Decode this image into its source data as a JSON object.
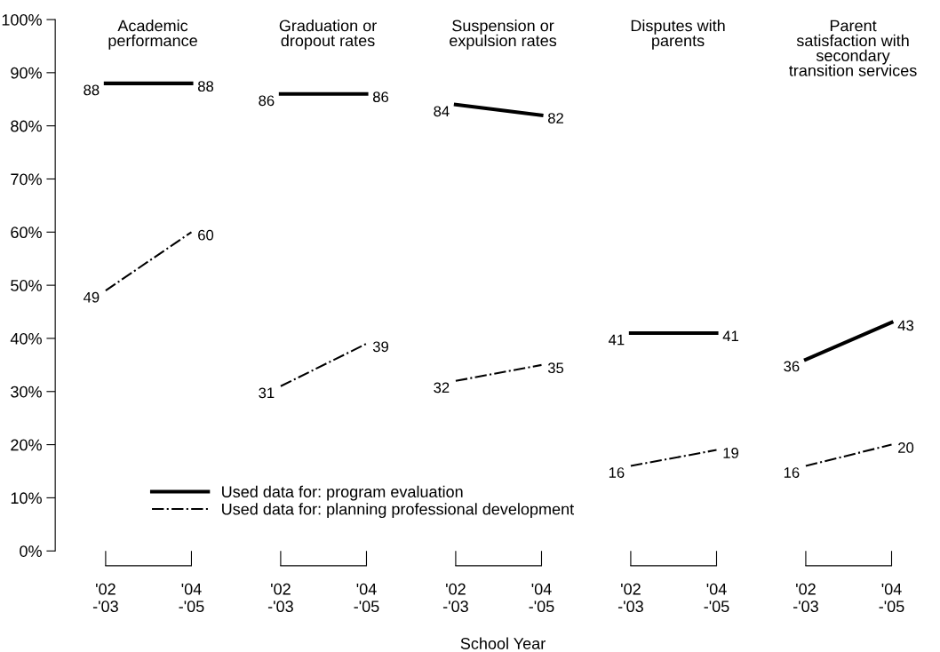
{
  "chart_data": [
    {
      "type": "line",
      "title": "Academic\nperformance",
      "categories": [
        "'02\n-'03",
        "'04\n-'05"
      ],
      "ylim": [
        0,
        100
      ],
      "yticks": [
        {
          "value": 0,
          "label": "0%"
        },
        {
          "value": 10,
          "label": "10%"
        },
        {
          "value": 20,
          "label": "20%"
        },
        {
          "value": 30,
          "label": "30%"
        },
        {
          "value": 40,
          "label": "40%"
        },
        {
          "value": 50,
          "label": "50%"
        },
        {
          "value": 60,
          "label": "60%"
        },
        {
          "value": 70,
          "label": "70%"
        },
        {
          "value": 80,
          "label": "80%"
        },
        {
          "value": 90,
          "label": "90%"
        },
        {
          "value": 100,
          "label": "100%"
        }
      ],
      "data_labels": true,
      "legend": "bottom",
      "grid": false,
      "marker": "none",
      "series": [
        {
          "name": "Used data for: program evaluation",
          "color": "#000000",
          "line_style": "solid",
          "values": [
            88,
            88
          ]
        },
        {
          "name": "Used data for: planning professional development",
          "color": "#000000",
          "line_style": "dashdot",
          "values": [
            49,
            60
          ]
        }
      ]
    },
    {
      "type": "line",
      "title": "Graduation or\ndropout rates",
      "categories": [
        "'02\n-'03",
        "'04\n-'05"
      ],
      "ylim": [
        0,
        100
      ],
      "tick_labels": "x",
      "data_labels": true,
      "grid": false,
      "marker": "none",
      "series": [
        {
          "color": "#000000",
          "line_style": "solid",
          "values": [
            86,
            86
          ]
        },
        {
          "color": "#000000",
          "line_style": "dashdot",
          "values": [
            31,
            39
          ]
        }
      ]
    },
    {
      "type": "line",
      "title": "Suspension or\nexpulsion rates",
      "xlabel": "School Year",
      "categories": [
        "'02\n-'03",
        "'04\n-'05"
      ],
      "ylim": [
        0,
        100
      ],
      "tick_labels": "x",
      "data_labels": true,
      "grid": false,
      "marker": "none",
      "series": [
        {
          "color": "#000000",
          "line_style": "solid",
          "values": [
            84,
            82
          ]
        },
        {
          "color": "#000000",
          "line_style": "dashdot",
          "values": [
            32,
            35
          ]
        }
      ]
    },
    {
      "type": "line",
      "title": "Disputes with\nparents",
      "categories": [
        "'02\n-'03",
        "'04\n-'05"
      ],
      "ylim": [
        0,
        100
      ],
      "tick_labels": "x",
      "data_labels": true,
      "grid": false,
      "marker": "none",
      "series": [
        {
          "color": "#000000",
          "line_style": "solid",
          "values": [
            41,
            41
          ]
        },
        {
          "color": "#000000",
          "line_style": "dashdot",
          "values": [
            16,
            19
          ]
        }
      ]
    },
    {
      "type": "line",
      "title": "Parent\nsatisfaction with\nsecondary\ntransition services",
      "categories": [
        "'02\n-'03",
        "'04\n-'05"
      ],
      "ylim": [
        0,
        100
      ],
      "tick_labels": "x",
      "data_labels": true,
      "grid": false,
      "marker": "none",
      "series": [
        {
          "color": "#000000",
          "line_style": "solid",
          "values": [
            36,
            43
          ]
        },
        {
          "color": "#000000",
          "line_style": "dashdot",
          "values": [
            16,
            20
          ]
        }
      ]
    }
  ]
}
